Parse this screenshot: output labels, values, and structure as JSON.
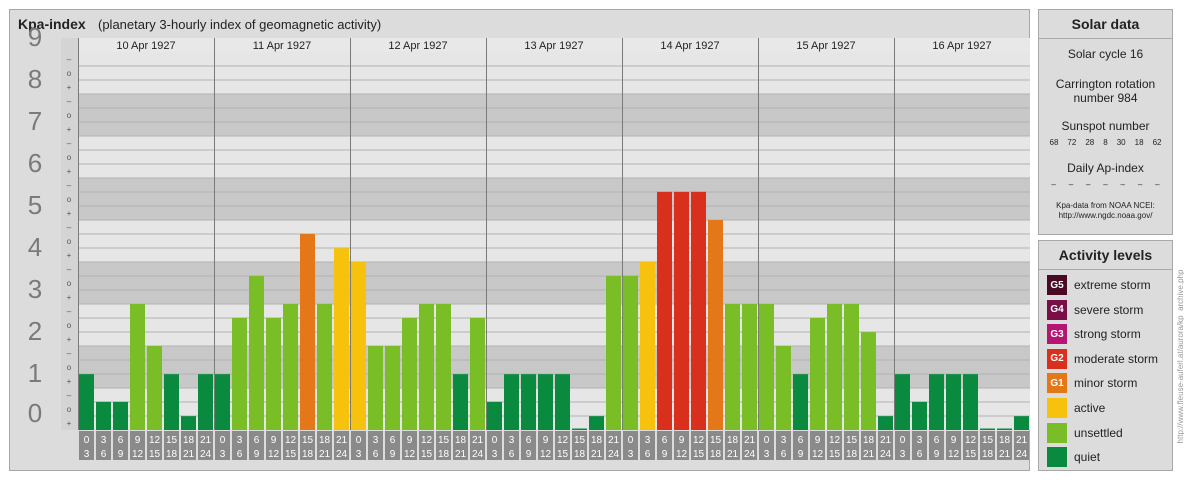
{
  "chart_data": {
    "type": "bar",
    "title": "Kpa-index",
    "subtitle": "(planetary 3-hourly index of geomagnetic activity)",
    "ylim": [
      0,
      9
    ],
    "y_major_ticks": [
      "0",
      "1",
      "2",
      "3",
      "4",
      "5",
      "6",
      "7",
      "8",
      "9"
    ],
    "y_minor_ticks": [
      "+",
      "o",
      "–"
    ],
    "days": [
      "10 Apr 1927",
      "11 Apr 1927",
      "12 Apr 1927",
      "13 Apr 1927",
      "14 Apr 1927",
      "15 Apr 1927",
      "16 Apr 1927"
    ],
    "interval_start": [
      "0",
      "3",
      "6",
      "9",
      "12",
      "15",
      "18",
      "21"
    ],
    "interval_end": [
      "3",
      "6",
      "9",
      "12",
      "15",
      "18",
      "21",
      "24"
    ],
    "values": [
      [
        1.33,
        0.67,
        0.67,
        3.0,
        2.0,
        1.33,
        0.33,
        1.33
      ],
      [
        1.33,
        2.67,
        3.67,
        2.67,
        3.0,
        4.67,
        3.0,
        4.33
      ],
      [
        4.0,
        2.0,
        2.0,
        2.67,
        3.0,
        3.0,
        1.33,
        2.67
      ],
      [
        0.67,
        1.33,
        1.33,
        1.33,
        1.33,
        0.0,
        0.33,
        3.67
      ],
      [
        3.67,
        4.0,
        5.67,
        5.67,
        5.67,
        5.0,
        3.0,
        3.0
      ],
      [
        3.0,
        2.0,
        1.33,
        2.67,
        3.0,
        3.0,
        2.33,
        0.33
      ],
      [
        1.33,
        0.67,
        1.33,
        1.33,
        1.33,
        0.0,
        0.0,
        0.33
      ]
    ],
    "colors": {
      "quiet": "#0a8a3e",
      "unsettled": "#79bd27",
      "active": "#f7c20d",
      "minor": "#e47718",
      "moderate": "#d8301d"
    },
    "grid": true
  },
  "solar": {
    "title": "Solar data",
    "cycle": "Solar cycle 16",
    "carrington_1": "Carrington rotation",
    "carrington_2": "number 984",
    "sunspot_title": "Sunspot number",
    "sunspot_values": [
      "68",
      "72",
      "28",
      "8",
      "30",
      "18",
      "62"
    ],
    "ap_title": "Daily Ap-index",
    "ap_values": [
      "–",
      "–",
      "–",
      "–",
      "–",
      "–",
      "–"
    ],
    "source_1": "Kpa-data from NOAA NCEI:",
    "source_2": "http://www.ngdc.noaa.gov/"
  },
  "activity": {
    "title": "Activity levels",
    "levels": [
      {
        "code": "G5",
        "label": "extreme storm",
        "color": "#4a0a24"
      },
      {
        "code": "G4",
        "label": "severe storm",
        "color": "#780f48"
      },
      {
        "code": "G3",
        "label": "strong storm",
        "color": "#b51572"
      },
      {
        "code": "G2",
        "label": "moderate storm",
        "color": "#d8301d"
      },
      {
        "code": "G1",
        "label": "minor storm",
        "color": "#e47718"
      },
      {
        "code": "",
        "label": "active",
        "color": "#f7c20d"
      },
      {
        "code": "",
        "label": "unsettled",
        "color": "#79bd27"
      },
      {
        "code": "",
        "label": "quiet",
        "color": "#0a8a3e"
      }
    ]
  },
  "side_url": "http://www.fleuse-auferl.at/aurora/kp_archive.php"
}
